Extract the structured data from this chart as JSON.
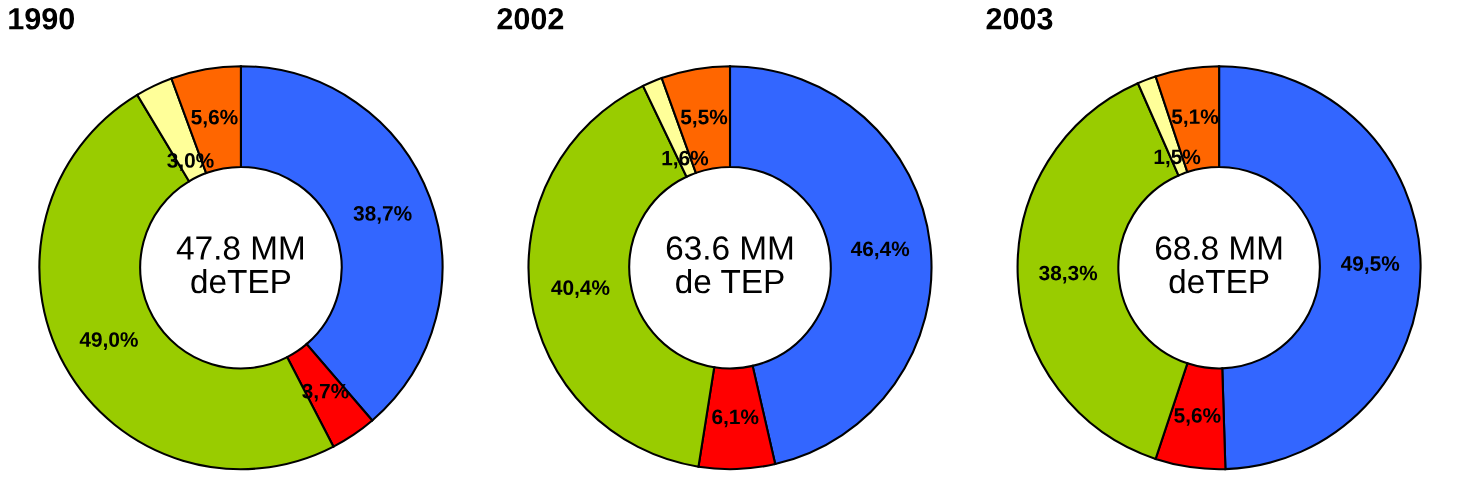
{
  "chart_data": [
    {
      "type": "donut",
      "title": "1990",
      "categories": [
        null,
        null,
        null,
        null,
        null
      ],
      "values": [
        38.7,
        3.7,
        49.0,
        3.0,
        5.6
      ],
      "colors": [
        "#3366ff",
        "#ff0000",
        "#99cc00",
        "#ffff99",
        "#ff6600"
      ],
      "value_labels": [
        "38,7%",
        "3,7%",
        "49,0%",
        "3,0%",
        "5,6%"
      ],
      "annotations": [
        "47.8 MM\ndeTEP"
      ]
    },
    {
      "type": "donut",
      "title": "2002",
      "categories": [
        null,
        null,
        null,
        null,
        null
      ],
      "values": [
        46.4,
        6.1,
        40.4,
        1.6,
        5.5
      ],
      "colors": [
        "#3366ff",
        "#ff0000",
        "#99cc00",
        "#ffff99",
        "#ff6600"
      ],
      "value_labels": [
        "46,4%",
        "6,1%",
        "40,4%",
        "1,6%",
        "5,5%"
      ],
      "annotations": [
        "63.6 MM\nde TEP"
      ]
    },
    {
      "type": "donut",
      "title": "2003",
      "categories": [
        null,
        null,
        null,
        null,
        null
      ],
      "values": [
        49.5,
        5.6,
        38.3,
        1.5,
        5.1
      ],
      "colors": [
        "#3366ff",
        "#ff0000",
        "#99cc00",
        "#ffff99",
        "#ff6600"
      ],
      "value_labels": [
        "49,5%",
        "5,6%",
        "38,3%",
        "1,5%",
        "5,1%"
      ],
      "annotations": [
        "68.8 MM\ndeTEP"
      ]
    }
  ]
}
